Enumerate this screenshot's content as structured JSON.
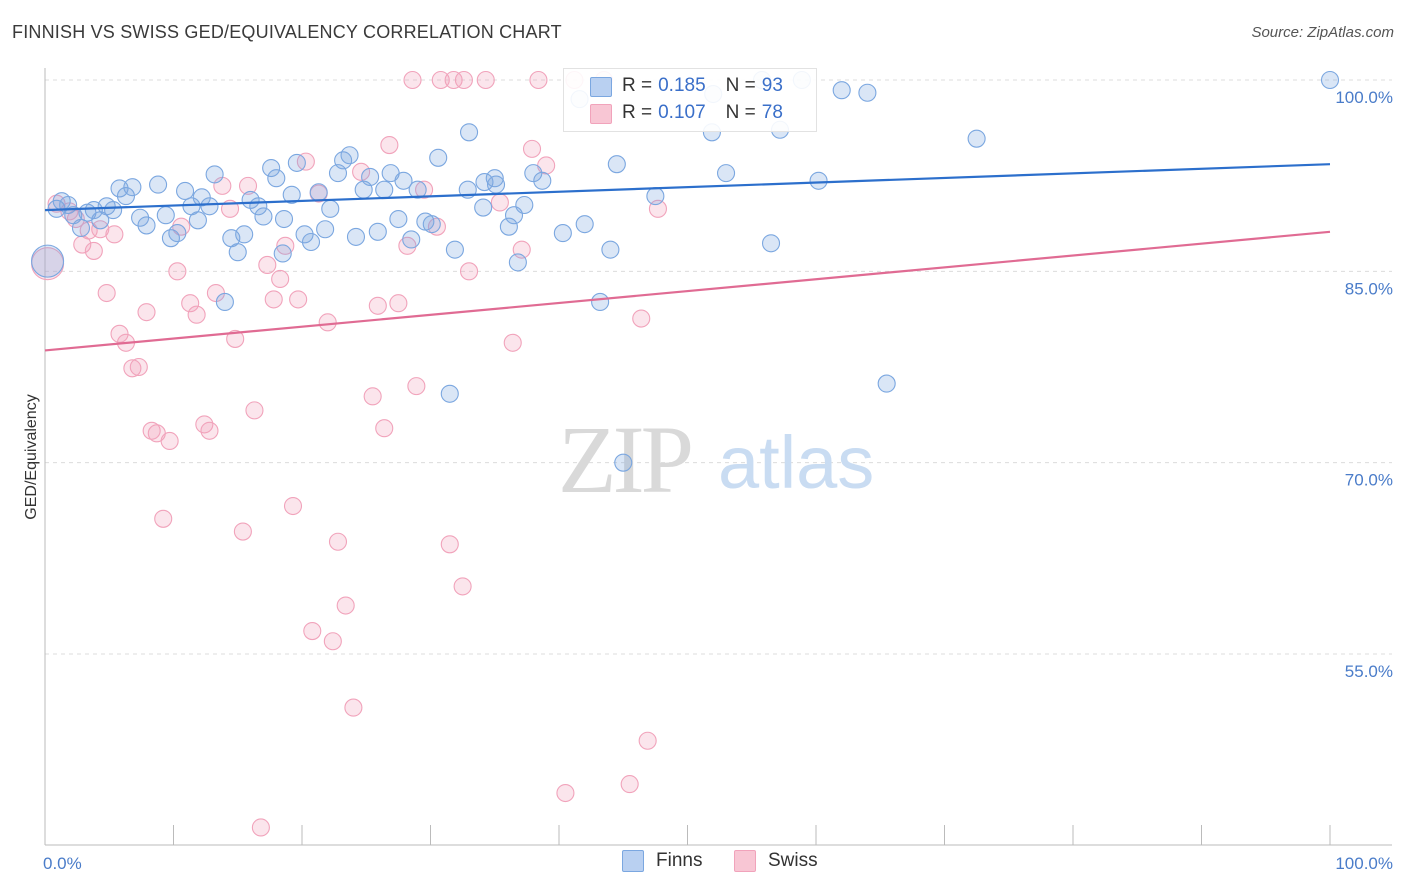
{
  "chart_data": {
    "type": "scatter",
    "title": "FINNISH VS SWISS GED/EQUIVALENCY CORRELATION CHART",
    "source": "Source: ZipAtlas.com",
    "ylabel": "GED/Equivalency",
    "xlabel": "",
    "xlim": [
      0,
      100
    ],
    "ylim": [
      40,
      100
    ],
    "x_tick_labels": [
      "0.0%",
      "100.0%"
    ],
    "y_tick_labels": [
      "100.0%",
      "85.0%",
      "70.0%",
      "55.0%"
    ],
    "y_tick_values": [
      100,
      85,
      70,
      55
    ],
    "watermark": {
      "zip": "ZIP",
      "atlas": "atlas"
    },
    "legend_stats": [
      {
        "r_label": "R = ",
        "r_value": "0.185",
        "n_label": "N = ",
        "n_value": "93"
      },
      {
        "r_label": "R = ",
        "r_value": "0.107",
        "n_label": "N = ",
        "n_value": "78"
      }
    ],
    "series": [
      {
        "name": "Finns",
        "color": "#7ba7e0",
        "trend_color": "#2c6fcc",
        "trend": {
          "x": [
            0,
            100
          ],
          "y": [
            89.8,
            93.4
          ]
        },
        "points": [
          [
            0.2,
            85.8
          ],
          [
            0.9,
            89.9
          ],
          [
            1.3,
            90.5
          ],
          [
            1.8,
            90.2
          ],
          [
            2.2,
            89.4
          ],
          [
            2.8,
            88.4
          ],
          [
            3.3,
            89.6
          ],
          [
            3.8,
            89.8
          ],
          [
            4.3,
            89.0
          ],
          [
            4.8,
            90.1
          ],
          [
            5.3,
            89.8
          ],
          [
            5.8,
            91.5
          ],
          [
            6.3,
            90.9
          ],
          [
            6.8,
            91.6
          ],
          [
            7.4,
            89.2
          ],
          [
            7.9,
            88.6
          ],
          [
            8.8,
            91.8
          ],
          [
            9.4,
            89.4
          ],
          [
            9.8,
            87.6
          ],
          [
            10.3,
            88.0
          ],
          [
            10.9,
            91.3
          ],
          [
            11.4,
            90.1
          ],
          [
            11.9,
            89.0
          ],
          [
            12.2,
            90.8
          ],
          [
            12.8,
            90.1
          ],
          [
            13.2,
            92.6
          ],
          [
            14.0,
            82.6
          ],
          [
            14.5,
            87.6
          ],
          [
            15.0,
            86.5
          ],
          [
            15.5,
            87.9
          ],
          [
            16.0,
            90.6
          ],
          [
            16.6,
            90.1
          ],
          [
            17.0,
            89.3
          ],
          [
            17.6,
            93.1
          ],
          [
            18.0,
            92.3
          ],
          [
            18.6,
            89.1
          ],
          [
            19.2,
            91.0
          ],
          [
            19.6,
            93.5
          ],
          [
            20.2,
            87.9
          ],
          [
            20.7,
            87.3
          ],
          [
            21.3,
            91.2
          ],
          [
            21.8,
            88.3
          ],
          [
            22.2,
            89.9
          ],
          [
            22.8,
            92.7
          ],
          [
            23.2,
            93.7
          ],
          [
            23.7,
            94.1
          ],
          [
            24.2,
            87.7
          ],
          [
            24.8,
            91.4
          ],
          [
            25.3,
            92.4
          ],
          [
            25.9,
            88.1
          ],
          [
            26.4,
            91.4
          ],
          [
            26.9,
            92.7
          ],
          [
            27.5,
            89.1
          ],
          [
            27.9,
            92.1
          ],
          [
            28.5,
            87.5
          ],
          [
            29.0,
            91.4
          ],
          [
            29.6,
            88.9
          ],
          [
            30.1,
            88.7
          ],
          [
            30.6,
            93.9
          ],
          [
            31.5,
            75.4
          ],
          [
            31.9,
            86.7
          ],
          [
            32.9,
            91.4
          ],
          [
            33.0,
            95.9
          ],
          [
            34.2,
            92.0
          ],
          [
            34.1,
            90.0
          ],
          [
            35.0,
            92.3
          ],
          [
            35.1,
            91.8
          ],
          [
            36.1,
            88.5
          ],
          [
            36.5,
            89.4
          ],
          [
            36.8,
            85.7
          ],
          [
            37.3,
            90.2
          ],
          [
            38.0,
            92.7
          ],
          [
            38.7,
            92.1
          ],
          [
            40.3,
            88.0
          ],
          [
            41.6,
            98.5
          ],
          [
            42.0,
            88.7
          ],
          [
            43.2,
            82.6
          ],
          [
            44.0,
            86.7
          ],
          [
            44.5,
            93.4
          ],
          [
            47.5,
            90.9
          ],
          [
            51.9,
            95.9
          ],
          [
            53.0,
            92.7
          ],
          [
            55.8,
            100.0
          ],
          [
            56.5,
            87.2
          ],
          [
            57.2,
            96.1
          ],
          [
            58.9,
            100.0
          ],
          [
            60.2,
            92.1
          ],
          [
            65.5,
            76.2
          ],
          [
            72.5,
            95.4
          ],
          [
            100.0,
            100.0
          ],
          [
            52.0,
            98.9
          ],
          [
            62.0,
            99.2
          ],
          [
            64.0,
            99.0
          ],
          [
            18.5,
            86.4
          ],
          [
            45.0,
            70.0
          ]
        ]
      },
      {
        "name": "Swiss",
        "color": "#f1a3bb",
        "trend_color": "#e06b93",
        "trend": {
          "x": [
            0,
            100
          ],
          "y": [
            78.8,
            88.1
          ]
        },
        "points": [
          [
            0.2,
            85.6
          ],
          [
            0.9,
            90.3
          ],
          [
            1.9,
            89.7
          ],
          [
            2.4,
            89.1
          ],
          [
            2.9,
            87.1
          ],
          [
            3.4,
            88.2
          ],
          [
            3.8,
            86.6
          ],
          [
            4.3,
            88.3
          ],
          [
            4.8,
            83.3
          ],
          [
            5.4,
            87.9
          ],
          [
            5.8,
            80.1
          ],
          [
            6.3,
            79.4
          ],
          [
            6.8,
            77.4
          ],
          [
            7.3,
            77.5
          ],
          [
            7.9,
            81.8
          ],
          [
            8.3,
            72.5
          ],
          [
            8.7,
            72.3
          ],
          [
            9.2,
            65.6
          ],
          [
            9.7,
            71.7
          ],
          [
            10.3,
            85.0
          ],
          [
            10.6,
            88.5
          ],
          [
            11.3,
            82.5
          ],
          [
            11.8,
            81.6
          ],
          [
            12.4,
            73.0
          ],
          [
            12.8,
            72.5
          ],
          [
            13.3,
            83.3
          ],
          [
            13.8,
            91.7
          ],
          [
            14.4,
            89.9
          ],
          [
            14.8,
            79.7
          ],
          [
            15.4,
            64.6
          ],
          [
            15.8,
            91.7
          ],
          [
            16.3,
            74.1
          ],
          [
            16.8,
            41.4
          ],
          [
            17.3,
            85.5
          ],
          [
            17.8,
            82.8
          ],
          [
            18.3,
            84.4
          ],
          [
            18.7,
            87.0
          ],
          [
            19.3,
            66.6
          ],
          [
            19.7,
            82.8
          ],
          [
            20.3,
            93.6
          ],
          [
            20.8,
            56.8
          ],
          [
            21.3,
            91.1
          ],
          [
            22.0,
            81.0
          ],
          [
            22.4,
            56.0
          ],
          [
            22.8,
            63.8
          ],
          [
            23.4,
            58.8
          ],
          [
            24.0,
            50.8
          ],
          [
            24.6,
            92.8
          ],
          [
            25.5,
            75.2
          ],
          [
            25.9,
            82.3
          ],
          [
            26.4,
            72.7
          ],
          [
            26.8,
            94.9
          ],
          [
            27.5,
            82.5
          ],
          [
            28.2,
            87.0
          ],
          [
            28.9,
            76.0
          ],
          [
            29.5,
            91.4
          ],
          [
            30.5,
            88.5
          ],
          [
            31.5,
            63.6
          ],
          [
            32.5,
            60.3
          ],
          [
            33.0,
            85.0
          ],
          [
            34.3,
            100.0
          ],
          [
            35.4,
            90.4
          ],
          [
            36.4,
            79.4
          ],
          [
            37.1,
            86.7
          ],
          [
            39.0,
            93.3
          ],
          [
            40.5,
            44.1
          ],
          [
            41.2,
            100.0
          ],
          [
            43.5,
            100.0
          ],
          [
            45.5,
            44.8
          ],
          [
            46.4,
            81.3
          ],
          [
            46.9,
            48.2
          ],
          [
            47.7,
            89.9
          ],
          [
            38.4,
            100.0
          ],
          [
            37.9,
            94.6
          ],
          [
            30.8,
            100.0
          ],
          [
            31.8,
            100.0
          ],
          [
            28.6,
            100.0
          ],
          [
            32.6,
            100.0
          ]
        ]
      }
    ]
  }
}
